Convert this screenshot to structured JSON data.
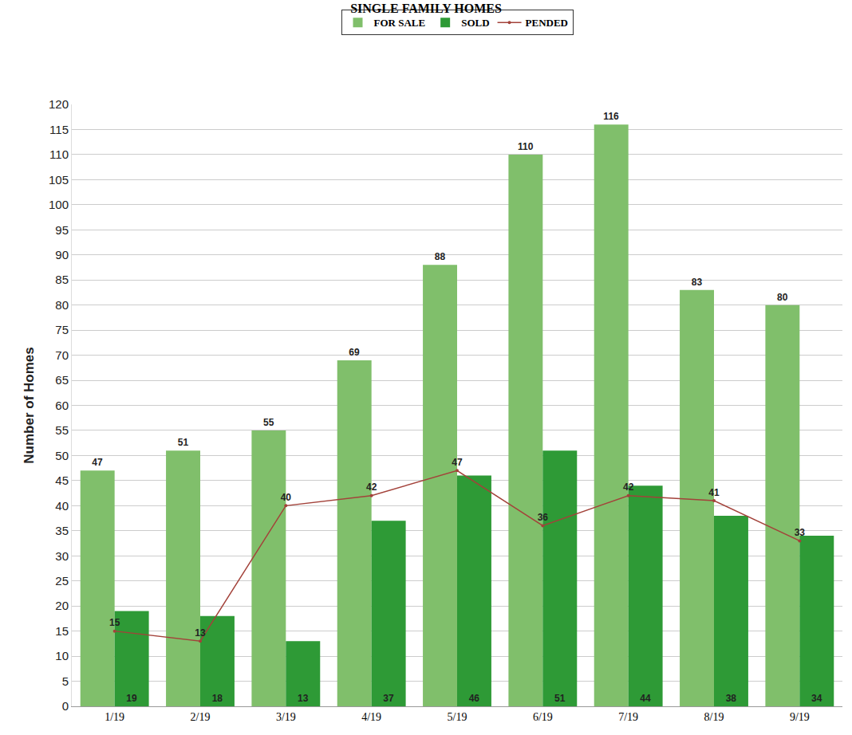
{
  "chart_data": {
    "type": "bar",
    "title": "SINGLE FAMILY HOMES",
    "y_label": "Number of Homes",
    "categories": [
      "1/19",
      "2/19",
      "3/19",
      "4/19",
      "5/19",
      "6/19",
      "7/19",
      "8/19",
      "9/19"
    ],
    "series": [
      {
        "name": "FOR SALE",
        "type": "bar",
        "color": "#80bf6b",
        "values": [
          47,
          51,
          55,
          69,
          88,
          110,
          116,
          83,
          80
        ]
      },
      {
        "name": "SOLD",
        "type": "bar",
        "color": "#2e9a36",
        "values": [
          19,
          18,
          13,
          37,
          46,
          51,
          44,
          38,
          34
        ]
      },
      {
        "name": "PENDED",
        "type": "line",
        "color": "#a3423a",
        "marker": "circle",
        "values": [
          15,
          13,
          40,
          42,
          47,
          36,
          42,
          41,
          33
        ]
      }
    ],
    "ylim": [
      0,
      120
    ],
    "yticks": [
      0,
      5,
      10,
      15,
      20,
      25,
      30,
      35,
      40,
      45,
      50,
      55,
      60,
      65,
      70,
      75,
      80,
      85,
      90,
      95,
      100,
      105,
      110,
      115,
      120
    ],
    "grid": true,
    "legend": "top",
    "data_labels": true
  }
}
